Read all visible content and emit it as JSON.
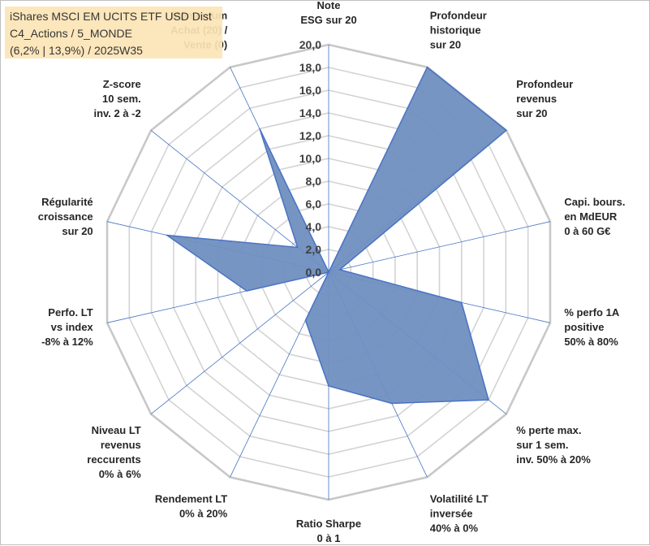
{
  "title_lines": [
    "iShares MSCI EM UCITS ETF USD Dist",
    "C4_Actions / 5_MONDE",
    "(6,2% | 13,9%) / 2025W35"
  ],
  "colors": {
    "fill": "#6f8fc0",
    "stroke": "#4a72c4",
    "grid": "#d3d3d3",
    "axis": "#4472c4"
  },
  "chart_data": {
    "type": "radar",
    "rmin": 0,
    "rmax": 20,
    "tick_step": 2,
    "ticks": [
      "0,0",
      "2,0",
      "4,0",
      "6,0",
      "8,0",
      "10,0",
      "12,0",
      "14,0",
      "16,0",
      "18,0",
      "20,0"
    ],
    "axes": [
      {
        "label": [
          "Note",
          "ESG sur 20"
        ],
        "value": 0
      },
      {
        "label": [
          "Profondeur",
          "historique",
          "sur 20"
        ],
        "value": 20
      },
      {
        "label": [
          "Profondeur",
          "revenus",
          "sur 20"
        ],
        "value": 20
      },
      {
        "label": [
          "Capi. bours.",
          "en MdEUR",
          "0 à 60 G€"
        ],
        "value": 1
      },
      {
        "label": [
          "% perfo 1A",
          "positive",
          "50% à 80%"
        ],
        "value": 12
      },
      {
        "label": [
          "% perte max.",
          "sur 1 sem.",
          "inv. 50% à 20%"
        ],
        "value": 18
      },
      {
        "label": [
          "Volatilité LT",
          "inversée",
          "40% à 0%"
        ],
        "value": 12.8
      },
      {
        "label": [
          "Ratio Sharpe",
          "0 à 1"
        ],
        "value": 10
      },
      {
        "label": [
          "Rendement LT",
          "0% à 20%"
        ],
        "value": 4.7
      },
      {
        "label": [
          "Niveau LT",
          "revenus",
          "reccurents",
          "0% à 6%"
        ],
        "value": 0
      },
      {
        "label": [
          "Perfo. LT",
          "vs index",
          "-8% à 12%"
        ],
        "value": 7.4
      },
      {
        "label": [
          "Régularité",
          "croissance",
          "sur 20"
        ],
        "value": 14.6
      },
      {
        "label": [
          "Z-score",
          "10 sem.",
          "inv. 2 à -2"
        ],
        "value": 3.5
      },
      {
        "label": [
          "Momentum",
          "Achat (20) /",
          "Vente (0)"
        ],
        "value": 14
      }
    ]
  }
}
